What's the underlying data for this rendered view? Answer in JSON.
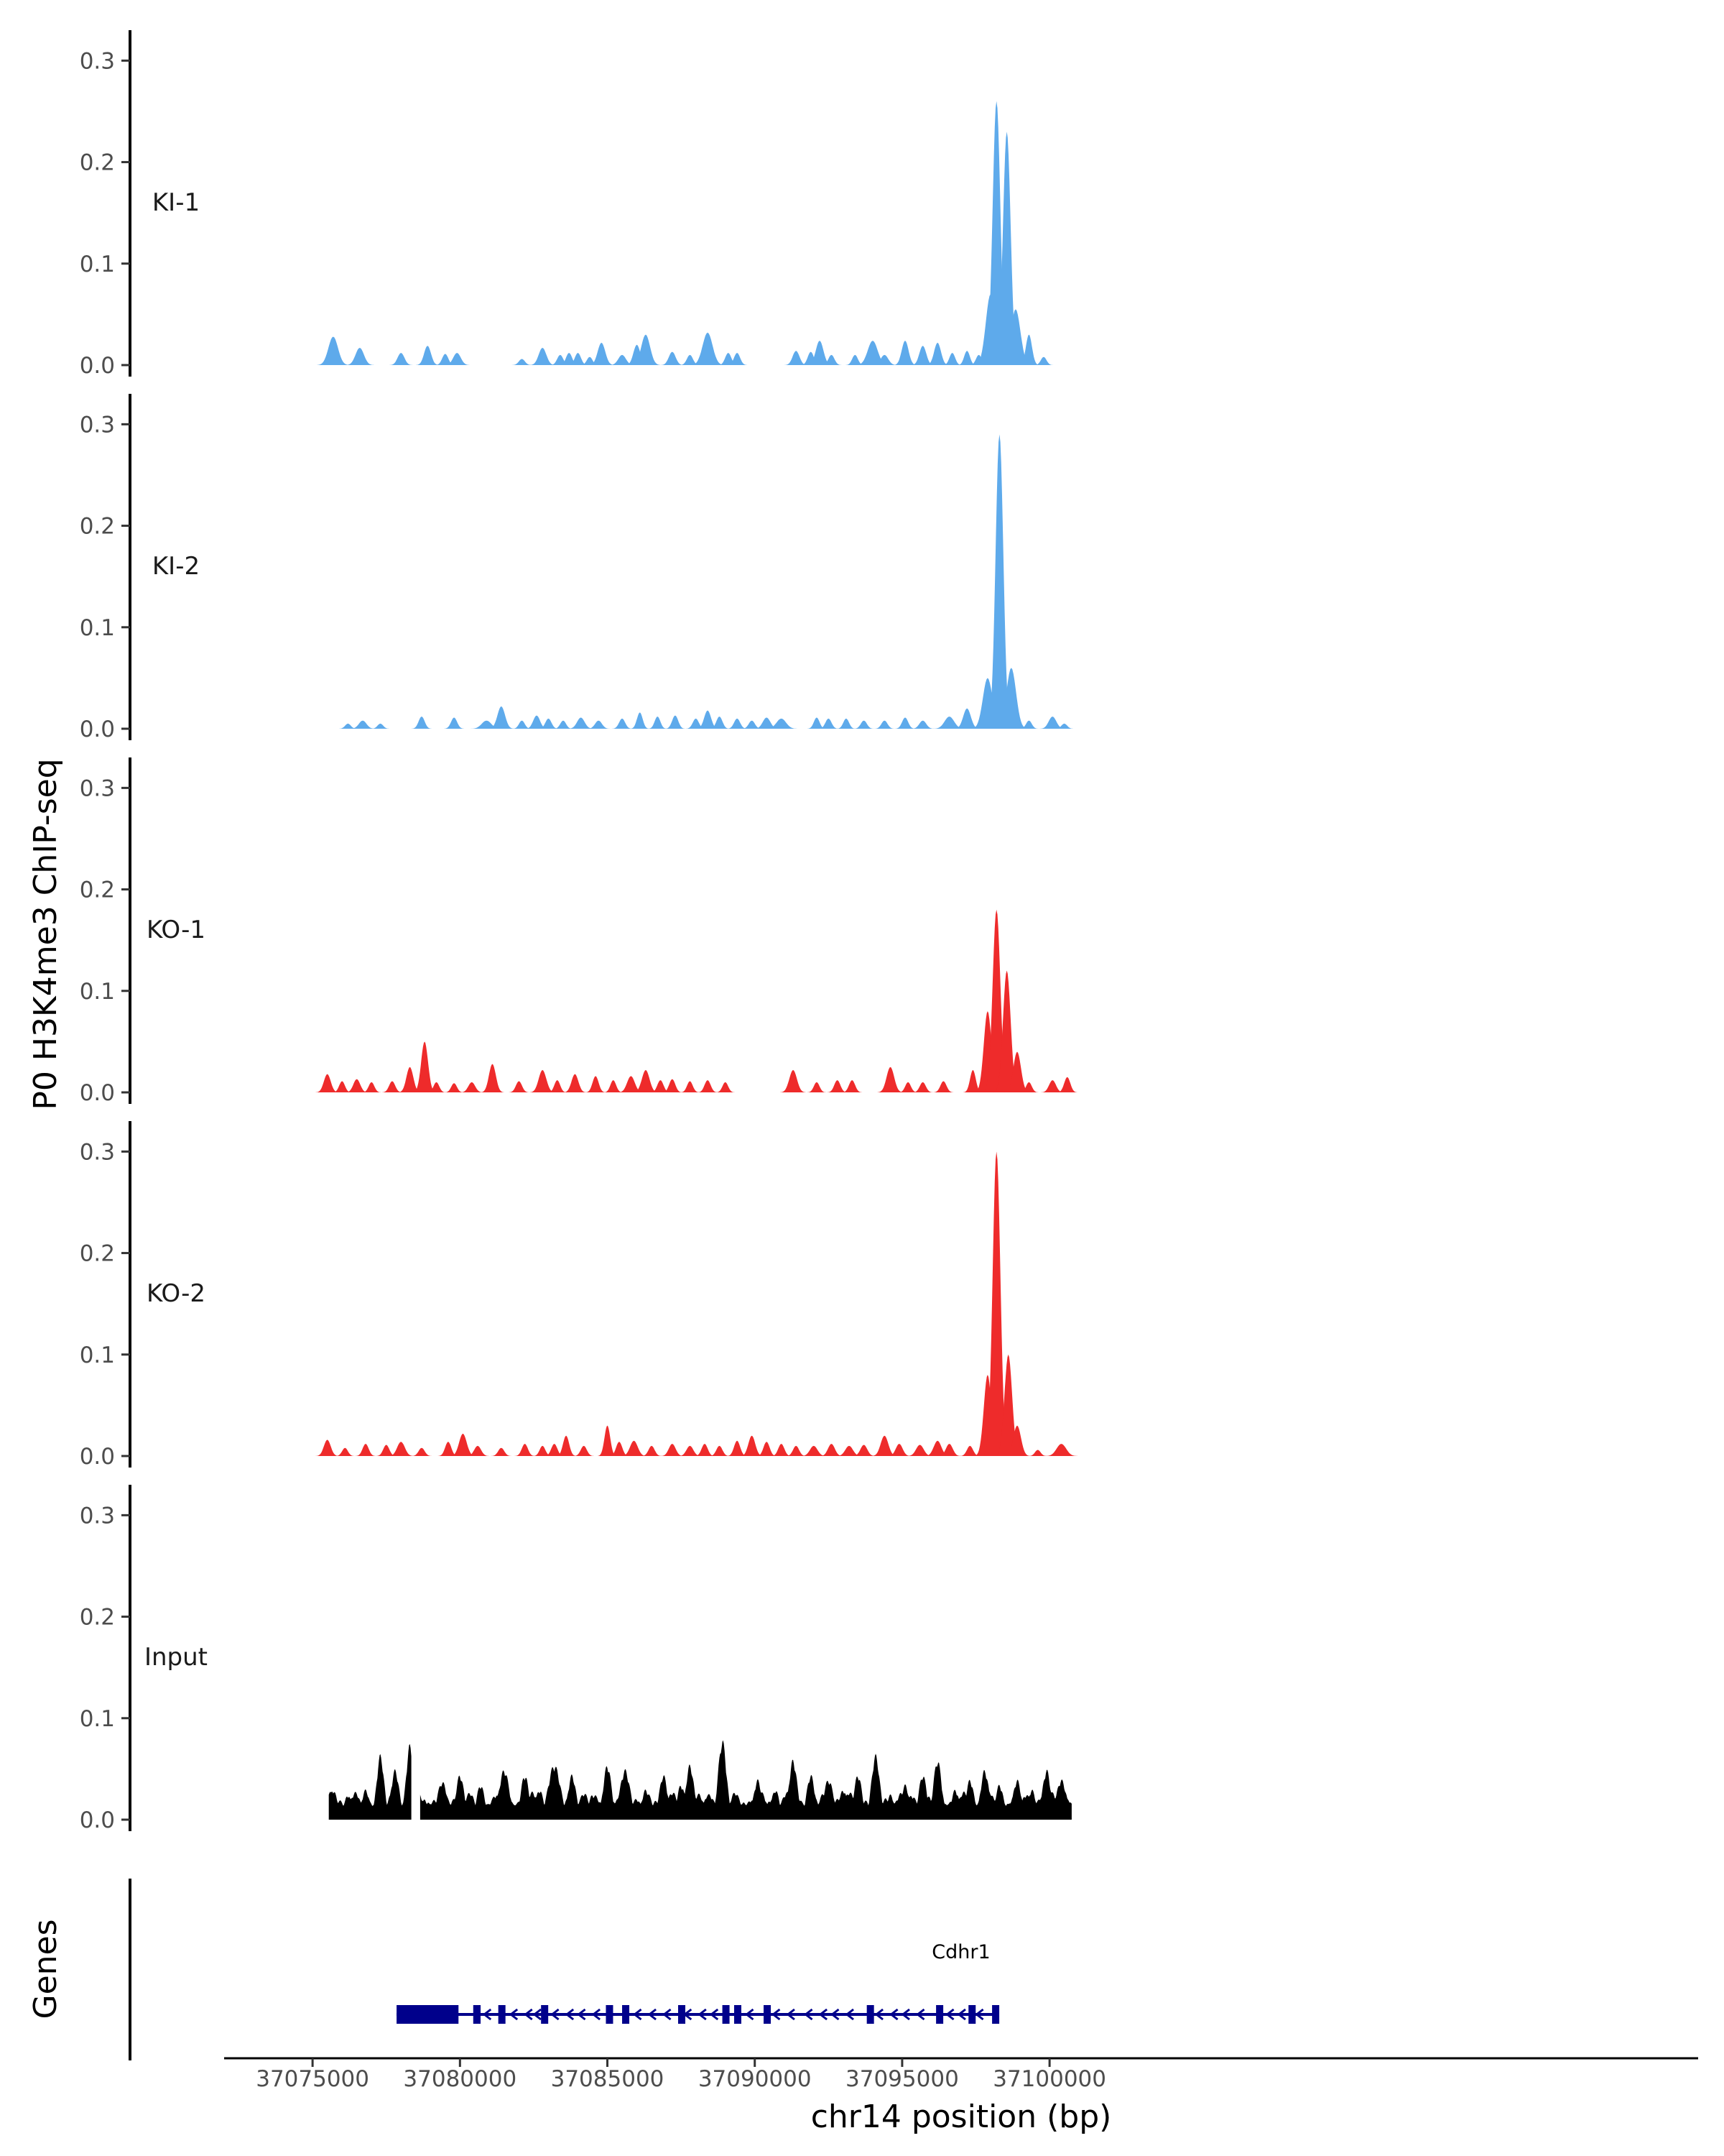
{
  "chart_data": {
    "type": "area",
    "xlabel": "chr14 position (bp)",
    "ylabel": "P0 H3K4me3 ChIP-seq",
    "gene_track_label": "Genes",
    "xlim": [
      37072000,
      37122000
    ],
    "x_ticks": [
      37075000,
      37080000,
      37085000,
      37090000,
      37095000,
      37100000
    ],
    "x_tick_labels": [
      "37075000",
      "37080000",
      "37085000",
      "37090000",
      "37095000",
      "37100000"
    ],
    "ylim": [
      0,
      0.33
    ],
    "y_ticks": [
      0.0,
      0.1,
      0.2,
      0.3
    ],
    "y_tick_labels": [
      "0.0",
      "0.1",
      "0.2",
      "0.3"
    ],
    "colors": {
      "KI": "#5eaaeb",
      "KO": "#ee2b2b",
      "Input": "#000000",
      "gene": "#00008b"
    },
    "tracks": [
      {
        "name": "KI-1",
        "color": "#5eaaeb",
        "peaks": [
          [
            37075700,
            0.028,
            250
          ],
          [
            37076600,
            0.017,
            220
          ],
          [
            37078000,
            0.012,
            180
          ],
          [
            37078900,
            0.019,
            180
          ],
          [
            37079500,
            0.011,
            160
          ],
          [
            37079900,
            0.012,
            200
          ],
          [
            37082100,
            0.006,
            160
          ],
          [
            37082800,
            0.017,
            200
          ],
          [
            37083400,
            0.01,
            160
          ],
          [
            37083700,
            0.012,
            160
          ],
          [
            37084000,
            0.012,
            160
          ],
          [
            37084400,
            0.008,
            150
          ],
          [
            37084800,
            0.022,
            200
          ],
          [
            37085500,
            0.01,
            200
          ],
          [
            37086000,
            0.02,
            180
          ],
          [
            37086300,
            0.03,
            230
          ],
          [
            37087200,
            0.013,
            180
          ],
          [
            37087800,
            0.01,
            160
          ],
          [
            37088400,
            0.032,
            260
          ],
          [
            37089100,
            0.012,
            160
          ],
          [
            37089400,
            0.012,
            160
          ],
          [
            37091400,
            0.014,
            180
          ],
          [
            37091900,
            0.013,
            160
          ],
          [
            37092200,
            0.024,
            200
          ],
          [
            37092600,
            0.01,
            160
          ],
          [
            37093400,
            0.01,
            150
          ],
          [
            37094000,
            0.024,
            260
          ],
          [
            37094400,
            0.01,
            200
          ],
          [
            37095100,
            0.024,
            180
          ],
          [
            37095700,
            0.019,
            180
          ],
          [
            37096200,
            0.022,
            180
          ],
          [
            37096700,
            0.012,
            150
          ],
          [
            37097200,
            0.014,
            150
          ],
          [
            37097600,
            0.01,
            150
          ],
          [
            37098000,
            0.07,
            250
          ],
          [
            37098200,
            0.26,
            200
          ],
          [
            37098550,
            0.23,
            200
          ],
          [
            37098850,
            0.055,
            250
          ],
          [
            37099300,
            0.03,
            160
          ],
          [
            37099800,
            0.008,
            150
          ]
        ]
      },
      {
        "name": "KI-2",
        "color": "#5eaaeb",
        "peaks": [
          [
            37076200,
            0.005,
            150
          ],
          [
            37076700,
            0.008,
            200
          ],
          [
            37077300,
            0.005,
            150
          ],
          [
            37078700,
            0.012,
            160
          ],
          [
            37079800,
            0.011,
            160
          ],
          [
            37080900,
            0.008,
            250
          ],
          [
            37081400,
            0.022,
            200
          ],
          [
            37082100,
            0.008,
            150
          ],
          [
            37082600,
            0.013,
            180
          ],
          [
            37083000,
            0.01,
            160
          ],
          [
            37083500,
            0.008,
            150
          ],
          [
            37084100,
            0.011,
            200
          ],
          [
            37084700,
            0.008,
            180
          ],
          [
            37085500,
            0.01,
            160
          ],
          [
            37086100,
            0.016,
            150
          ],
          [
            37086700,
            0.012,
            150
          ],
          [
            37087300,
            0.013,
            160
          ],
          [
            37088000,
            0.01,
            160
          ],
          [
            37088400,
            0.018,
            180
          ],
          [
            37088800,
            0.012,
            160
          ],
          [
            37089400,
            0.01,
            160
          ],
          [
            37089900,
            0.008,
            160
          ],
          [
            37090400,
            0.011,
            200
          ],
          [
            37090900,
            0.01,
            250
          ],
          [
            37092100,
            0.011,
            150
          ],
          [
            37092500,
            0.01,
            160
          ],
          [
            37093100,
            0.01,
            150
          ],
          [
            37093700,
            0.008,
            160
          ],
          [
            37094400,
            0.008,
            160
          ],
          [
            37095100,
            0.011,
            160
          ],
          [
            37095700,
            0.008,
            180
          ],
          [
            37096600,
            0.012,
            250
          ],
          [
            37097200,
            0.02,
            200
          ],
          [
            37097900,
            0.05,
            250
          ],
          [
            37098300,
            0.29,
            200
          ],
          [
            37098700,
            0.06,
            250
          ],
          [
            37099300,
            0.008,
            150
          ],
          [
            37100100,
            0.012,
            200
          ],
          [
            37100500,
            0.005,
            150
          ]
        ]
      },
      {
        "name": "KO-1",
        "color": "#ee2b2b",
        "peaks": [
          [
            37075500,
            0.018,
            180
          ],
          [
            37076000,
            0.011,
            150
          ],
          [
            37076500,
            0.013,
            180
          ],
          [
            37077000,
            0.01,
            150
          ],
          [
            37077700,
            0.011,
            160
          ],
          [
            37078300,
            0.025,
            180
          ],
          [
            37078800,
            0.05,
            180
          ],
          [
            37079200,
            0.01,
            150
          ],
          [
            37079800,
            0.009,
            150
          ],
          [
            37080400,
            0.01,
            180
          ],
          [
            37081100,
            0.028,
            180
          ],
          [
            37082000,
            0.011,
            160
          ],
          [
            37082800,
            0.022,
            200
          ],
          [
            37083300,
            0.012,
            150
          ],
          [
            37083900,
            0.018,
            180
          ],
          [
            37084600,
            0.016,
            160
          ],
          [
            37085200,
            0.012,
            150
          ],
          [
            37085800,
            0.016,
            200
          ],
          [
            37086300,
            0.022,
            200
          ],
          [
            37086800,
            0.012,
            160
          ],
          [
            37087200,
            0.013,
            160
          ],
          [
            37087800,
            0.011,
            150
          ],
          [
            37088400,
            0.012,
            160
          ],
          [
            37089000,
            0.01,
            150
          ],
          [
            37091300,
            0.022,
            200
          ],
          [
            37092100,
            0.01,
            150
          ],
          [
            37092800,
            0.012,
            160
          ],
          [
            37093300,
            0.012,
            160
          ],
          [
            37094600,
            0.025,
            200
          ],
          [
            37095200,
            0.01,
            150
          ],
          [
            37095700,
            0.01,
            160
          ],
          [
            37096400,
            0.011,
            160
          ],
          [
            37097400,
            0.022,
            150
          ],
          [
            37097900,
            0.08,
            200
          ],
          [
            37098200,
            0.18,
            200
          ],
          [
            37098550,
            0.12,
            200
          ],
          [
            37098900,
            0.04,
            200
          ],
          [
            37099300,
            0.01,
            150
          ],
          [
            37100100,
            0.012,
            180
          ],
          [
            37100600,
            0.015,
            160
          ]
        ]
      },
      {
        "name": "KO-2",
        "color": "#ee2b2b",
        "peaks": [
          [
            37075500,
            0.016,
            180
          ],
          [
            37076100,
            0.008,
            150
          ],
          [
            37076800,
            0.012,
            160
          ],
          [
            37077500,
            0.011,
            160
          ],
          [
            37078000,
            0.014,
            200
          ],
          [
            37078700,
            0.008,
            160
          ],
          [
            37079600,
            0.014,
            160
          ],
          [
            37080100,
            0.022,
            200
          ],
          [
            37080600,
            0.01,
            180
          ],
          [
            37081400,
            0.008,
            160
          ],
          [
            37082200,
            0.012,
            160
          ],
          [
            37082800,
            0.01,
            150
          ],
          [
            37083200,
            0.012,
            160
          ],
          [
            37083600,
            0.02,
            160
          ],
          [
            37084200,
            0.01,
            160
          ],
          [
            37085000,
            0.03,
            150
          ],
          [
            37085400,
            0.014,
            160
          ],
          [
            37085900,
            0.015,
            200
          ],
          [
            37086500,
            0.01,
            160
          ],
          [
            37087200,
            0.012,
            180
          ],
          [
            37087800,
            0.01,
            180
          ],
          [
            37088300,
            0.012,
            160
          ],
          [
            37088800,
            0.01,
            160
          ],
          [
            37089400,
            0.015,
            160
          ],
          [
            37089900,
            0.02,
            180
          ],
          [
            37090400,
            0.014,
            160
          ],
          [
            37090900,
            0.012,
            160
          ],
          [
            37091400,
            0.01,
            160
          ],
          [
            37092000,
            0.01,
            200
          ],
          [
            37092600,
            0.012,
            180
          ],
          [
            37093200,
            0.01,
            200
          ],
          [
            37093700,
            0.011,
            180
          ],
          [
            37094400,
            0.02,
            200
          ],
          [
            37094900,
            0.012,
            180
          ],
          [
            37095600,
            0.011,
            200
          ],
          [
            37096200,
            0.015,
            200
          ],
          [
            37096600,
            0.012,
            180
          ],
          [
            37097300,
            0.01,
            160
          ],
          [
            37097900,
            0.08,
            200
          ],
          [
            37098200,
            0.3,
            200
          ],
          [
            37098600,
            0.1,
            200
          ],
          [
            37098900,
            0.03,
            200
          ],
          [
            37099600,
            0.006,
            150
          ],
          [
            37100400,
            0.012,
            250
          ]
        ]
      },
      {
        "name": "Input",
        "color": "#000000",
        "baseline": 0.028,
        "peaks": [
          [
            37075700,
            0.03,
            200
          ],
          [
            37076200,
            0.025,
            180
          ],
          [
            37076800,
            0.03,
            200
          ],
          [
            37077300,
            0.065,
            180
          ],
          [
            37077800,
            0.05,
            200
          ],
          [
            37078300,
            0.075,
            180
          ],
          [
            37078800,
            0.02,
            200
          ],
          [
            37079400,
            0.038,
            250
          ],
          [
            37080000,
            0.045,
            200
          ],
          [
            37080700,
            0.035,
            200
          ],
          [
            37081500,
            0.05,
            250
          ],
          [
            37082200,
            0.045,
            200
          ],
          [
            37082700,
            0.03,
            200
          ],
          [
            37083200,
            0.055,
            300
          ],
          [
            37083800,
            0.045,
            200
          ],
          [
            37084500,
            0.025,
            200
          ],
          [
            37085000,
            0.055,
            200
          ],
          [
            37085600,
            0.05,
            250
          ],
          [
            37086300,
            0.03,
            200
          ],
          [
            37086900,
            0.045,
            200
          ],
          [
            37087500,
            0.035,
            200
          ],
          [
            37087800,
            0.055,
            200
          ],
          [
            37088400,
            0.025,
            200
          ],
          [
            37088900,
            0.08,
            200
          ],
          [
            37089500,
            0.01,
            200
          ],
          [
            37090100,
            0.04,
            200
          ],
          [
            37090700,
            0.03,
            200
          ],
          [
            37091300,
            0.06,
            200
          ],
          [
            37091900,
            0.045,
            200
          ],
          [
            37092500,
            0.04,
            250
          ],
          [
            37093000,
            0.03,
            200
          ],
          [
            37093500,
            0.045,
            200
          ],
          [
            37094100,
            0.065,
            200
          ],
          [
            37094600,
            0.025,
            200
          ],
          [
            37095100,
            0.035,
            200
          ],
          [
            37095700,
            0.045,
            200
          ],
          [
            37096200,
            0.06,
            200
          ],
          [
            37096800,
            0.03,
            200
          ],
          [
            37097300,
            0.04,
            200
          ],
          [
            37097800,
            0.05,
            200
          ],
          [
            37098300,
            0.035,
            200
          ],
          [
            37098900,
            0.04,
            200
          ],
          [
            37099400,
            0.03,
            200
          ],
          [
            37099900,
            0.05,
            200
          ],
          [
            37100400,
            0.04,
            250
          ]
        ],
        "start": 37075550,
        "end": 37100750,
        "gap": [
          37078350,
          37078650
        ]
      }
    ],
    "gene": {
      "name": "Cdhr1",
      "start": 37077850,
      "end": 37098250,
      "utr_block": [
        37077850,
        37079950
      ],
      "exons": [
        [
          37080450,
          37080700
        ],
        [
          37081300,
          37081500
        ],
        [
          37082750,
          37082900
        ],
        [
          37084950,
          37085100
        ],
        [
          37085500,
          37085700
        ],
        [
          37087400,
          37087500
        ],
        [
          37088900,
          37089000
        ],
        [
          37089300,
          37089450
        ],
        [
          37090300,
          37090400
        ],
        [
          37093800,
          37093900
        ],
        [
          37096150,
          37096300
        ],
        [
          37097250,
          37097350
        ],
        [
          37098050,
          37098250
        ]
      ],
      "strand_arrows": [
        37080900,
        37081800,
        37082300,
        37082600,
        37083200,
        37083700,
        37084100,
        37084600,
        37086000,
        37086500,
        37087000,
        37087700,
        37088200,
        37088600,
        37089800,
        37090700,
        37091200,
        37091800,
        37092300,
        37092700,
        37093200,
        37094200,
        37094700,
        37095100,
        37095600,
        37096600,
        37097000,
        37097600
      ]
    }
  }
}
